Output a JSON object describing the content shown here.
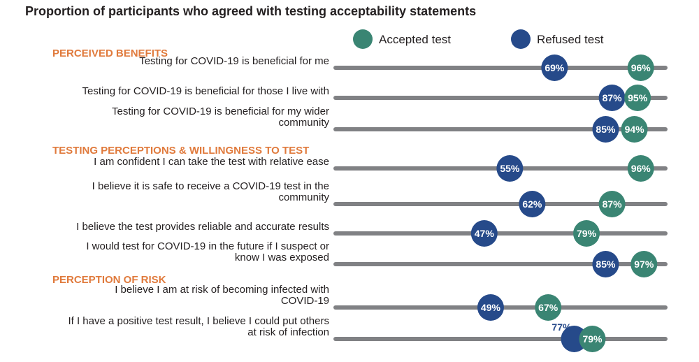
{
  "chart_data": {
    "type": "dumbbell",
    "title": "Proportion of participants who agreed with testing acceptability statements",
    "unit": "%",
    "xlim": [
      0,
      100
    ],
    "legend": {
      "position": "top-right",
      "entries": [
        {
          "name": "Accepted test",
          "color": "#3a8573"
        },
        {
          "name": "Refused test",
          "color": "#264a8a"
        }
      ]
    },
    "bar_color": "#808184",
    "section_color": "#e07a3c",
    "sections": [
      {
        "heading": "PERCEIVED BENEFITS",
        "rows": [
          {
            "label": [
              "Testing for COVID-19 is beneficial for me"
            ],
            "accepted": 96,
            "refused": 69
          },
          {
            "label": [
              "Testing for COVID-19 is beneficial for those I live with"
            ],
            "accepted": 95,
            "refused": 87
          },
          {
            "label": [
              "Testing for COVID-19 is beneficial for my wider",
              "community"
            ],
            "accepted": 94,
            "refused": 85
          }
        ]
      },
      {
        "heading": "TESTING PERCEPTIONS & WILLINGNESS TO TEST",
        "rows": [
          {
            "label": [
              "I am confident I can take the test with relative ease"
            ],
            "accepted": 96,
            "refused": 55
          },
          {
            "label": [
              "I believe it is safe to receive a COVID-19 test in the",
              "community"
            ],
            "accepted": 87,
            "refused": 62
          },
          {
            "label": [
              "I believe the test provides reliable and accurate results"
            ],
            "accepted": 79,
            "refused": 47
          },
          {
            "label": [
              "I would test for COVID-19 in the future if I suspect or",
              "know I was exposed"
            ],
            "accepted": 97,
            "refused": 85
          }
        ]
      },
      {
        "heading": "PERCEPTION OF RISK",
        "rows": [
          {
            "label": [
              "I believe I am at risk of becoming infected with",
              "COVID-19"
            ],
            "accepted": 67,
            "refused": 49
          },
          {
            "label": [
              "If I have a positive test result, I believe I could put others",
              "at risk of infection"
            ],
            "accepted": 79,
            "refused": 77
          }
        ]
      }
    ]
  }
}
